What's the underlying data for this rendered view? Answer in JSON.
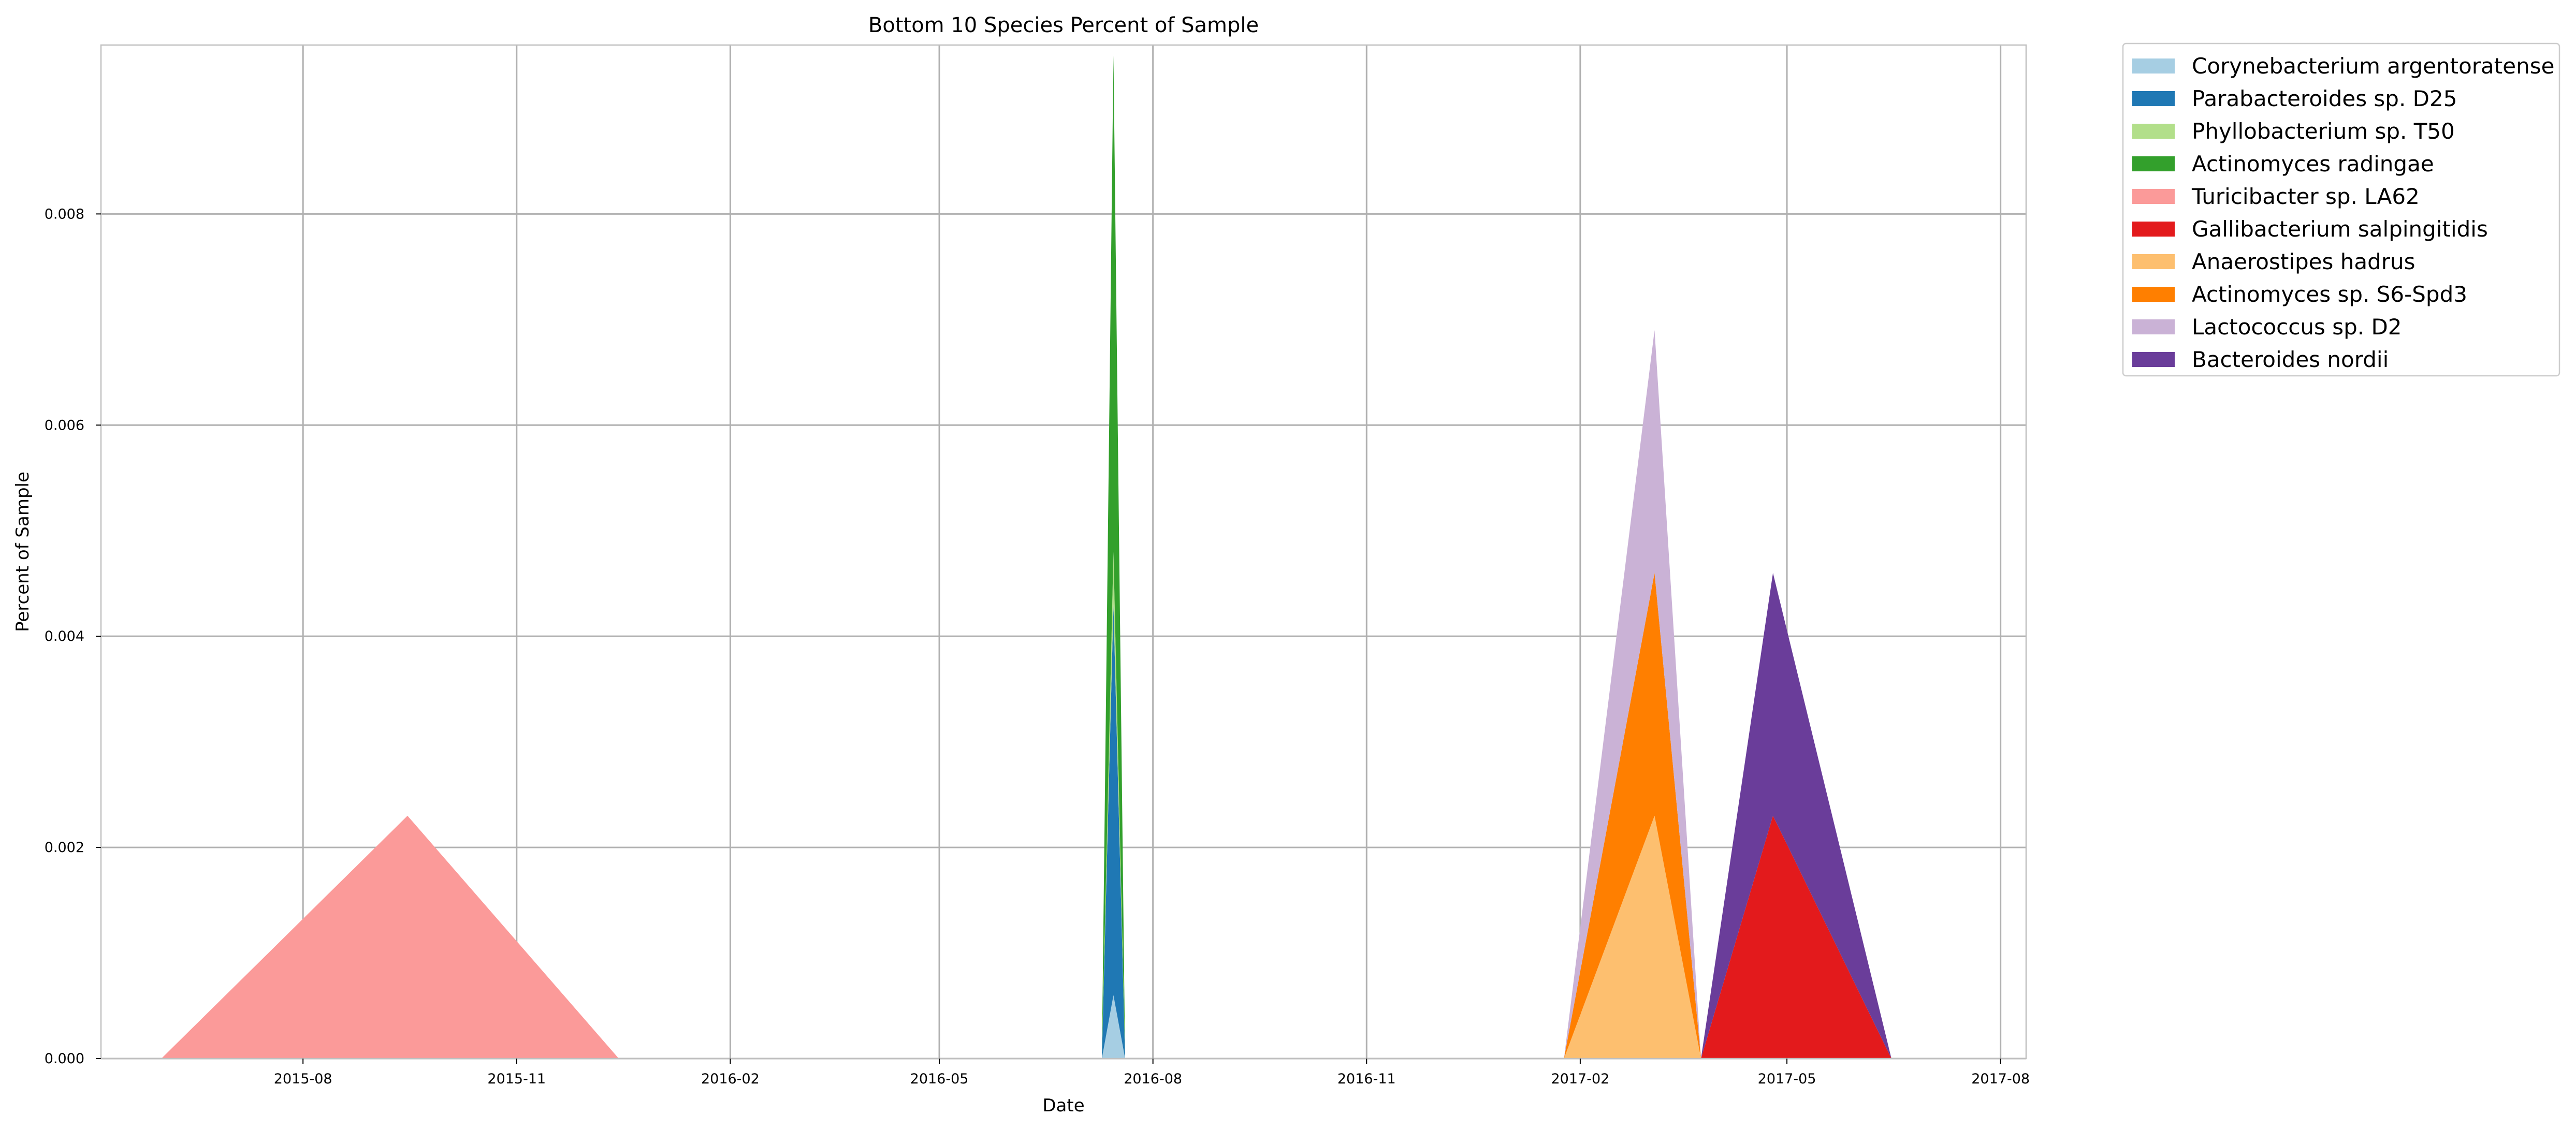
{
  "chart_data": {
    "type": "area",
    "title": "Bottom 10 Species Percent of Sample",
    "xlabel": "Date",
    "ylabel": "Percent of Sample",
    "x_ticks": [
      "2015-08",
      "2015-11",
      "2016-02",
      "2016-05",
      "2016-08",
      "2016-11",
      "2017-02",
      "2017-05",
      "2017-08"
    ],
    "xlim": [
      "2015-05-06",
      "2017-08-12"
    ],
    "y_ticks": [
      "0.000",
      "0.002",
      "0.004",
      "0.006",
      "0.008"
    ],
    "ylim": [
      0,
      0.0096
    ],
    "grid": true,
    "stacked": true,
    "legend_placement": "outside-top-right",
    "x": [
      "2015-06-01",
      "2015-09-15",
      "2015-12-15",
      "2016-07-10",
      "2016-07-15",
      "2016-07-20",
      "2017-01-25",
      "2017-03-05",
      "2017-03-25",
      "2017-04-25",
      "2017-06-15"
    ],
    "series": [
      {
        "name": "Corynebacterium argentoratense",
        "color": "#a6cee3",
        "values": [
          0,
          0,
          0,
          0,
          0.0006,
          0,
          0,
          0,
          0,
          0,
          0
        ]
      },
      {
        "name": "Parabacteroides sp. D25",
        "color": "#1f78b4",
        "values": [
          0,
          0,
          0,
          0,
          0.0037,
          0,
          0,
          0,
          0,
          0,
          0
        ]
      },
      {
        "name": "Phyllobacterium sp. T50",
        "color": "#b2df8a",
        "values": [
          0,
          0,
          0,
          0,
          0.0005,
          0,
          0,
          0,
          0,
          0,
          0
        ]
      },
      {
        "name": "Actinomyces radingae",
        "color": "#33a02c",
        "values": [
          0,
          0,
          0,
          0,
          0.0047,
          0,
          0,
          0,
          0,
          0,
          0
        ]
      },
      {
        "name": "Turicibacter sp. LA62",
        "color": "#fb9a99",
        "values": [
          0,
          0.0023,
          0,
          0,
          0,
          0,
          0,
          0,
          0,
          0,
          0
        ]
      },
      {
        "name": "Gallibacterium salpingitidis",
        "color": "#e31a1c",
        "values": [
          0,
          0,
          0,
          0,
          0,
          0,
          0,
          0,
          0,
          0.0023,
          0
        ]
      },
      {
        "name": "Anaerostipes hadrus",
        "color": "#fdbf6f",
        "values": [
          0,
          0,
          0,
          0,
          0,
          0,
          0,
          0.0023,
          0,
          0,
          0
        ]
      },
      {
        "name": "Actinomyces sp. S6-Spd3",
        "color": "#ff7f00",
        "values": [
          0,
          0,
          0,
          0,
          0,
          0,
          0,
          0.0023,
          0,
          0,
          0
        ]
      },
      {
        "name": "Lactococcus sp. D2",
        "color": "#cab2d6",
        "values": [
          0,
          0,
          0,
          0,
          0,
          0,
          0,
          0.0023,
          0,
          0,
          0
        ]
      },
      {
        "name": "Bacteroides nordii",
        "color": "#6a3d9a",
        "values": [
          0,
          0,
          0,
          0,
          0,
          0,
          0,
          0,
          0,
          0.0023,
          0
        ]
      }
    ]
  }
}
